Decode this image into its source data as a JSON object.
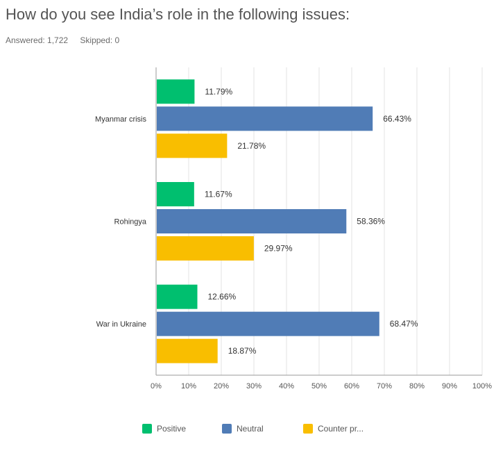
{
  "question": {
    "title": "How do you see India’s role in the following issues:",
    "answered": "Answered: 1,722",
    "skipped": "Skipped: 0"
  },
  "chart_data": {
    "type": "bar",
    "orientation": "horizontal",
    "categories": [
      "Myanmar crisis",
      "Rohingya",
      "War in Ukraine"
    ],
    "series": [
      {
        "name": "Positive",
        "values": [
          11.79,
          11.67,
          12.66
        ],
        "color": "#00bf6f"
      },
      {
        "name": "Neutral",
        "values": [
          66.43,
          58.36,
          68.47
        ],
        "color": "#507cb6"
      },
      {
        "name": "Counter pr...",
        "values": [
          21.78,
          29.97,
          18.87
        ],
        "color": "#f9be00"
      }
    ],
    "value_labels": [
      [
        "11.79%",
        "11.67%",
        "12.66%"
      ],
      [
        "66.43%",
        "58.36%",
        "68.47%"
      ],
      [
        "21.78%",
        "29.97%",
        "18.87%"
      ]
    ],
    "xticks": [
      "0%",
      "10%",
      "20%",
      "30%",
      "40%",
      "50%",
      "60%",
      "70%",
      "80%",
      "90%",
      "100%"
    ],
    "xlim": [
      0,
      100
    ],
    "grid": true,
    "legend": "bottom"
  }
}
